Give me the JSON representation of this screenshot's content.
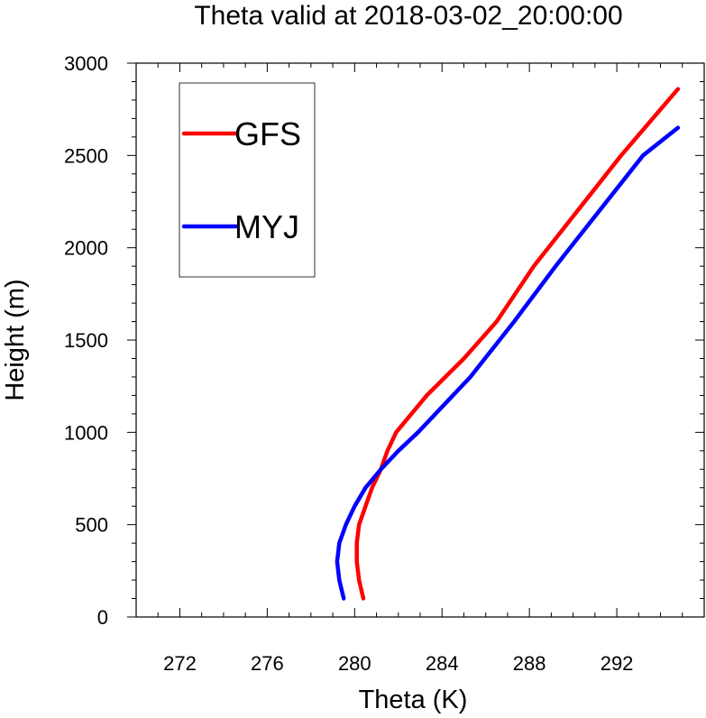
{
  "chart_data": {
    "type": "line",
    "title": "Theta valid at 2018-03-02_20:00:00",
    "xlabel": "Theta (K)",
    "ylabel": "Height (m)",
    "xlim": [
      270,
      296
    ],
    "ylim": [
      0,
      3000
    ],
    "xticks": [
      272,
      276,
      280,
      284,
      288,
      292
    ],
    "yticks": [
      0,
      500,
      1000,
      1500,
      2000,
      2500,
      3000
    ],
    "legend_placement": "top-left",
    "series": [
      {
        "name": "GFS",
        "color": "#ff0000",
        "points": [
          [
            280.4,
            100
          ],
          [
            280.2,
            200
          ],
          [
            280.1,
            300
          ],
          [
            280.1,
            400
          ],
          [
            280.2,
            500
          ],
          [
            280.5,
            600
          ],
          [
            280.8,
            700
          ],
          [
            281.2,
            800
          ],
          [
            281.5,
            900
          ],
          [
            281.9,
            1000
          ],
          [
            283.3,
            1200
          ],
          [
            285.0,
            1400
          ],
          [
            286.5,
            1600
          ],
          [
            288.2,
            1900
          ],
          [
            290.2,
            2200
          ],
          [
            292.2,
            2500
          ],
          [
            294.8,
            2860
          ]
        ]
      },
      {
        "name": "MYJ",
        "color": "#0000ff",
        "points": [
          [
            279.5,
            100
          ],
          [
            279.3,
            200
          ],
          [
            279.2,
            300
          ],
          [
            279.3,
            400
          ],
          [
            279.6,
            500
          ],
          [
            280.0,
            600
          ],
          [
            280.5,
            700
          ],
          [
            281.2,
            800
          ],
          [
            282.0,
            900
          ],
          [
            282.9,
            1000
          ],
          [
            285.3,
            1300
          ],
          [
            287.3,
            1600
          ],
          [
            289.2,
            1900
          ],
          [
            291.2,
            2200
          ],
          [
            293.2,
            2500
          ],
          [
            294.8,
            2650
          ]
        ]
      }
    ]
  }
}
